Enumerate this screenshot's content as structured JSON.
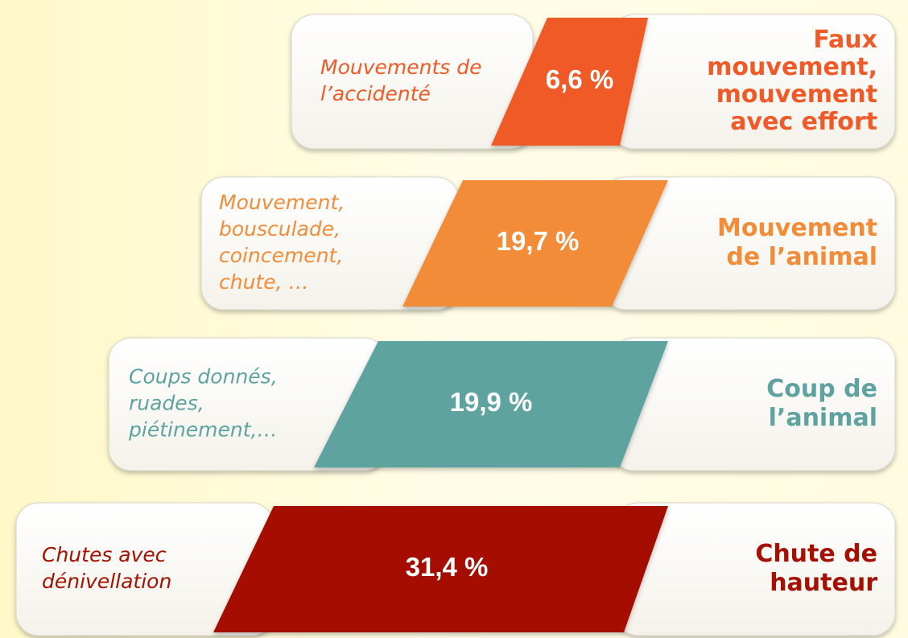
{
  "rows": [
    {
      "description": [
        "Mouvements de",
        "l’accidenté"
      ],
      "percent": "6,6 %",
      "category": [
        "Faux",
        "mouvement,",
        "mouvement",
        "avec effort"
      ],
      "color": "#f05a28"
    },
    {
      "description": [
        "Mouvement,",
        "bousculade,",
        "coincement,",
        "chute, …"
      ],
      "percent": "19,7 %",
      "category": [
        "Mouvement",
        "de l’animal"
      ],
      "color": "#f28c38"
    },
    {
      "description": [
        "Coups donnés,",
        "ruades,",
        "piétinement,…"
      ],
      "percent": "19,9 %",
      "category": [
        "Coup de",
        "l’animal"
      ],
      "color": "#5fa3a0"
    },
    {
      "description": [
        "Chutes avec",
        "dénivellation"
      ],
      "percent": "31,4 %",
      "category": [
        "Chute de",
        "hauteur"
      ],
      "color": "#a51000"
    }
  ]
}
